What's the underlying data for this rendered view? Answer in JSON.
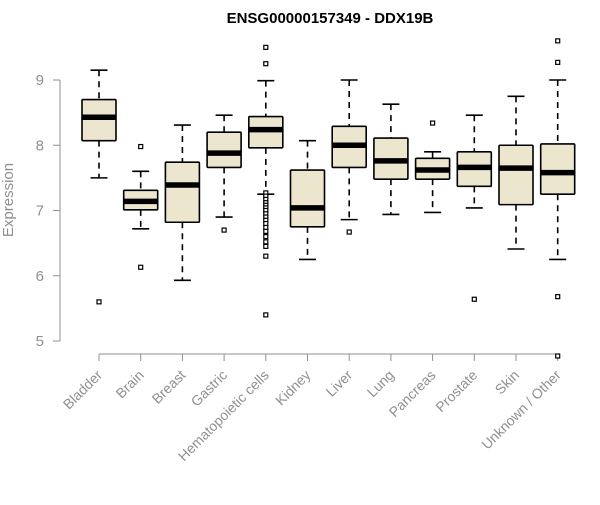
{
  "chart_data": {
    "type": "box",
    "title": "ENSG00000157349 - DDX19B",
    "xlabel": "",
    "ylabel": "Expression",
    "ylim": [
      4.7,
      9.6
    ],
    "yticks": [
      5,
      6,
      7,
      8,
      9
    ],
    "grid": false,
    "legend": "none",
    "colors": {
      "box_fill": "#ede6cf",
      "box_stroke": "#000000",
      "median": "#000000",
      "axis": "#909090",
      "tick_label": "#909090",
      "title": "#000000"
    },
    "categories": [
      "Bladder",
      "Brain",
      "Breast",
      "Gastric",
      "Hematopoietic cells",
      "Kidney",
      "Liver",
      "Lung",
      "Pancreas",
      "Prostate",
      "Skin",
      "Unknown / Other"
    ],
    "boxes": [
      {
        "category": "Bladder",
        "whisker_low": 7.5,
        "q1": 8.07,
        "median": 8.43,
        "q3": 8.7,
        "whisker_high": 9.15,
        "outliers": [
          5.6
        ]
      },
      {
        "category": "Brain",
        "whisker_low": 6.72,
        "q1": 7.01,
        "median": 7.14,
        "q3": 7.31,
        "whisker_high": 7.6,
        "outliers": [
          7.98,
          6.13
        ]
      },
      {
        "category": "Breast",
        "whisker_low": 5.93,
        "q1": 6.82,
        "median": 7.39,
        "q3": 7.74,
        "whisker_high": 8.31,
        "outliers": []
      },
      {
        "category": "Gastric",
        "whisker_low": 6.9,
        "q1": 7.66,
        "median": 7.88,
        "q3": 8.2,
        "whisker_high": 8.46,
        "outliers": [
          6.7
        ]
      },
      {
        "category": "Hematopoietic cells",
        "whisker_low": 7.25,
        "q1": 7.96,
        "median": 8.24,
        "q3": 8.44,
        "whisker_high": 8.99,
        "outliers": [
          9.5,
          9.25,
          7.27,
          7.22,
          7.17,
          7.12,
          7.08,
          7.04,
          7.0,
          6.95,
          6.9,
          6.85,
          6.8,
          6.74,
          6.68,
          6.6,
          6.52,
          6.45,
          6.3,
          5.4
        ]
      },
      {
        "category": "Kidney",
        "whisker_low": 6.25,
        "q1": 6.75,
        "median": 7.04,
        "q3": 7.62,
        "whisker_high": 8.07,
        "outliers": []
      },
      {
        "category": "Liver",
        "whisker_low": 6.86,
        "q1": 7.66,
        "median": 8.0,
        "q3": 8.29,
        "whisker_high": 9.0,
        "outliers": [
          6.67
        ]
      },
      {
        "category": "Lung",
        "whisker_low": 6.94,
        "q1": 7.48,
        "median": 7.76,
        "q3": 8.11,
        "whisker_high": 8.63,
        "outliers": []
      },
      {
        "category": "Pancreas",
        "whisker_low": 6.97,
        "q1": 7.48,
        "median": 7.62,
        "q3": 7.8,
        "whisker_high": 7.9,
        "outliers": [
          8.34
        ]
      },
      {
        "category": "Prostate",
        "whisker_low": 7.04,
        "q1": 7.37,
        "median": 7.66,
        "q3": 7.9,
        "whisker_high": 8.46,
        "outliers": [
          5.64
        ]
      },
      {
        "category": "Skin",
        "whisker_low": 6.41,
        "q1": 7.09,
        "median": 7.65,
        "q3": 8.0,
        "whisker_high": 8.75,
        "outliers": []
      },
      {
        "category": "Unknown / Other",
        "whisker_low": 6.25,
        "q1": 7.25,
        "median": 7.58,
        "q3": 8.02,
        "whisker_high": 9.0,
        "outliers": [
          9.6,
          9.27,
          5.68,
          4.77
        ]
      }
    ]
  }
}
